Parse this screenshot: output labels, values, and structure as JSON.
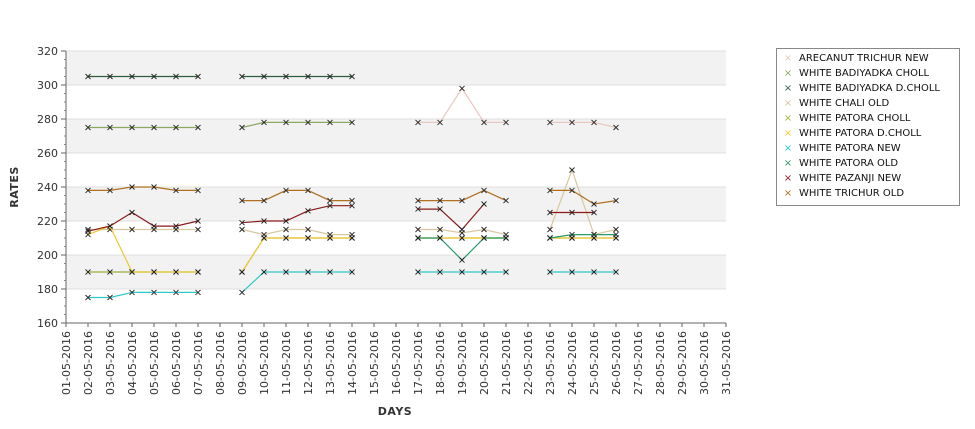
{
  "chart_data": {
    "type": "line",
    "xlabel": "DAYS",
    "ylabel": "RATES",
    "ylim": [
      160,
      320
    ],
    "yticks": [
      160,
      180,
      200,
      220,
      240,
      260,
      280,
      300,
      320
    ],
    "grid": true,
    "legend_position": "top-right",
    "x": [
      "01-05-2016",
      "02-05-2016",
      "03-05-2016",
      "04-05-2016",
      "05-05-2016",
      "06-05-2016",
      "07-05-2016",
      "08-05-2016",
      "09-05-2016",
      "10-05-2016",
      "11-05-2016",
      "12-05-2016",
      "13-05-2016",
      "14-05-2016",
      "15-05-2016",
      "16-05-2016",
      "17-05-2016",
      "18-05-2016",
      "19-05-2016",
      "20-05-2016",
      "21-05-2016",
      "22-05-2016",
      "23-05-2016",
      "24-05-2016",
      "25-05-2016",
      "26-05-2016",
      "27-05-2016",
      "28-05-2016",
      "29-05-2016",
      "30-05-2016",
      "31-05-2016"
    ],
    "series": [
      {
        "name": "ARECANUT TRICHUR NEW",
        "color": "#e8c8c0",
        "values": [
          null,
          null,
          null,
          null,
          null,
          null,
          null,
          null,
          null,
          null,
          null,
          null,
          null,
          null,
          null,
          null,
          278,
          278,
          298,
          278,
          278,
          null,
          278,
          278,
          278,
          275,
          null,
          null,
          null,
          null,
          null
        ]
      },
      {
        "name": "WHITE BADIYADKA CHOLL",
        "color": "#8aa860",
        "values": [
          null,
          275,
          275,
          275,
          275,
          275,
          275,
          null,
          275,
          278,
          278,
          278,
          278,
          278,
          null,
          null,
          null,
          null,
          null,
          null,
          null,
          null,
          null,
          null,
          null,
          null,
          null,
          null,
          null,
          null,
          null
        ]
      },
      {
        "name": "WHITE BADIYADKA D.CHOLL",
        "color": "#2e5e3a",
        "values": [
          null,
          305,
          305,
          305,
          305,
          305,
          305,
          null,
          305,
          305,
          305,
          305,
          305,
          305,
          null,
          null,
          null,
          null,
          null,
          null,
          null,
          null,
          null,
          null,
          null,
          null,
          null,
          null,
          null,
          null,
          null
        ]
      },
      {
        "name": "WHITE CHALI OLD",
        "color": "#d8c8a0",
        "values": [
          null,
          215,
          215,
          215,
          215,
          215,
          215,
          null,
          215,
          212,
          215,
          215,
          212,
          212,
          null,
          null,
          215,
          215,
          213,
          215,
          212,
          null,
          215,
          250,
          212,
          215,
          null,
          null,
          null,
          null,
          null
        ]
      },
      {
        "name": "WHITE PATORA CHOLL",
        "color": "#9ab040",
        "values": [
          null,
          190,
          190,
          190,
          190,
          190,
          190,
          null,
          190,
          210,
          210,
          210,
          210,
          210,
          null,
          null,
          210,
          210,
          210,
          210,
          210,
          null,
          210,
          210,
          210,
          210,
          null,
          null,
          null,
          null,
          null
        ]
      },
      {
        "name": "WHITE PATORA D.CHOLL",
        "color": "#f0c830",
        "values": [
          null,
          212,
          217,
          190,
          190,
          190,
          190,
          null,
          190,
          210,
          210,
          210,
          210,
          210,
          null,
          null,
          210,
          210,
          210,
          210,
          210,
          null,
          210,
          210,
          210,
          210,
          null,
          null,
          null,
          null,
          null
        ]
      },
      {
        "name": "WHITE PATORA NEW",
        "color": "#30c8c8",
        "values": [
          null,
          175,
          175,
          178,
          178,
          178,
          178,
          null,
          178,
          190,
          190,
          190,
          190,
          190,
          null,
          null,
          190,
          190,
          190,
          190,
          190,
          null,
          190,
          190,
          190,
          190,
          null,
          null,
          null,
          null,
          null
        ]
      },
      {
        "name": "WHITE PATORA OLD",
        "color": "#2a9a6a",
        "values": [
          null,
          null,
          null,
          null,
          null,
          null,
          null,
          null,
          null,
          null,
          null,
          null,
          null,
          null,
          null,
          null,
          210,
          210,
          197,
          210,
          210,
          null,
          210,
          212,
          212,
          212,
          null,
          null,
          null,
          null,
          null
        ]
      },
      {
        "name": "WHITE PAZANJI NEW",
        "color": "#8a1a1a",
        "values": [
          null,
          214,
          217,
          225,
          217,
          217,
          220,
          null,
          219,
          220,
          220,
          226,
          229,
          229,
          null,
          null,
          227,
          227,
          215,
          230,
          null,
          null,
          225,
          225,
          225,
          null,
          null,
          null,
          null,
          null,
          null
        ]
      },
      {
        "name": "WHITE TRICHUR OLD",
        "color": "#b07020",
        "values": [
          null,
          238,
          238,
          240,
          240,
          238,
          238,
          null,
          232,
          232,
          238,
          238,
          232,
          232,
          null,
          null,
          232,
          232,
          232,
          238,
          232,
          null,
          238,
          238,
          230,
          232,
          null,
          null,
          null,
          null,
          null
        ]
      }
    ]
  }
}
